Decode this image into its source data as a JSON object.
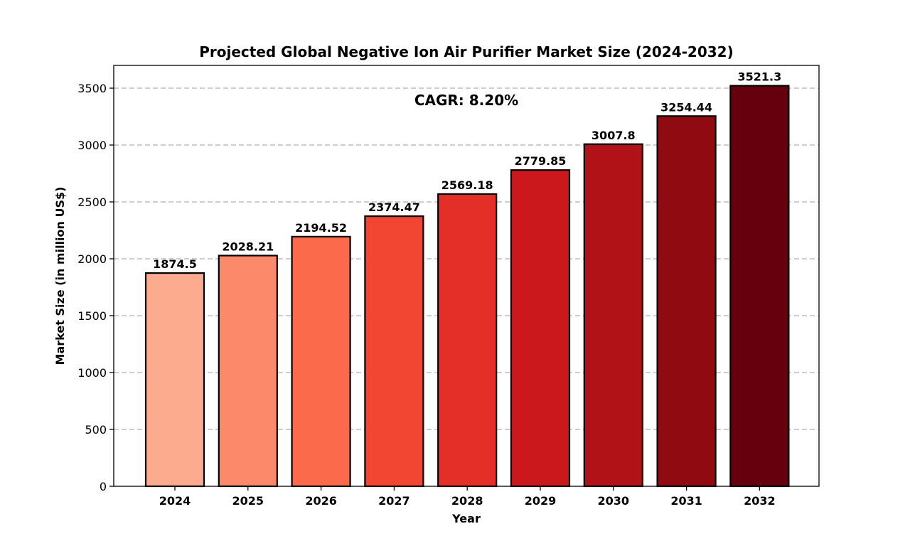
{
  "chart_data": {
    "type": "bar",
    "title": "Projected Global Negative Ion Air Purifier Market Size (2024-2032)",
    "xlabel": "Year",
    "ylabel": "Market Size (in million US$)",
    "categories": [
      "2024",
      "2025",
      "2026",
      "2027",
      "2028",
      "2029",
      "2030",
      "2031",
      "2032"
    ],
    "values": [
      1874.5,
      2028.21,
      2194.52,
      2374.47,
      2569.18,
      2779.85,
      3007.8,
      3254.44,
      3521.3
    ],
    "data_labels": [
      "1874.5",
      "2028.21",
      "2194.52",
      "2374.47",
      "2569.18",
      "2779.85",
      "3007.8",
      "3254.44",
      "3521.3"
    ],
    "bar_colors": [
      "#fcab8f",
      "#fc8a6a",
      "#fb6b4b",
      "#f24633",
      "#e32f27",
      "#cb181d",
      "#b11218",
      "#900a12",
      "#67000d"
    ],
    "ylim": [
      0,
      3700
    ],
    "yticks": [
      0,
      500,
      1000,
      1500,
      2000,
      2500,
      3000,
      3500
    ],
    "grid": true,
    "annotation": "CAGR: 8.20%"
  }
}
